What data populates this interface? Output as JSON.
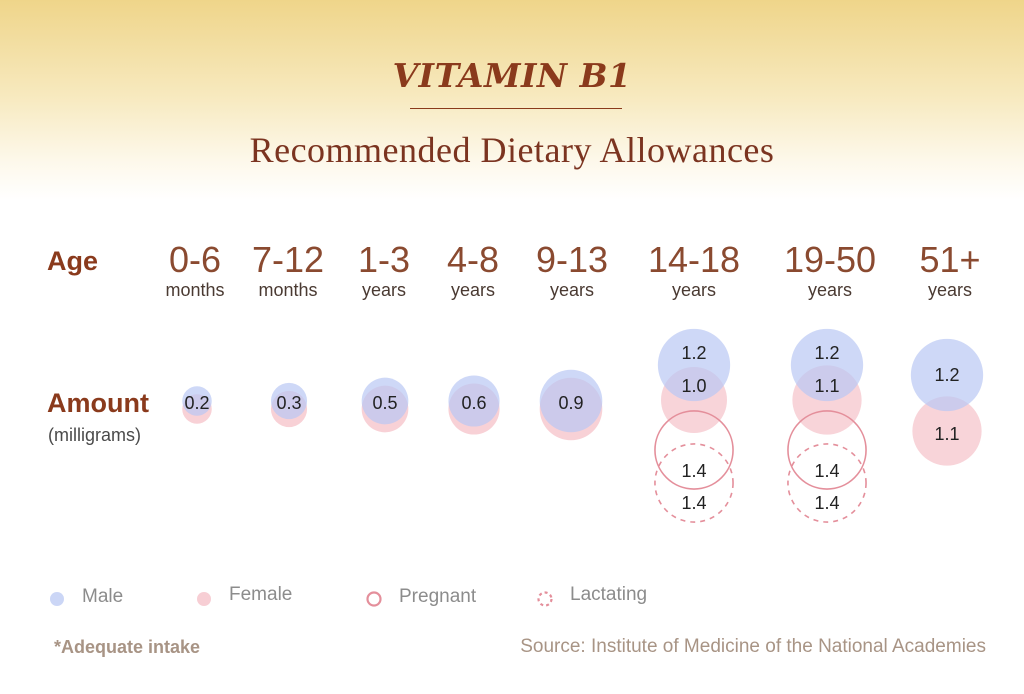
{
  "header": {
    "title": "VITAMIN B1",
    "subtitle": "Recommended Dietary Allowances"
  },
  "labels": {
    "age": "Age",
    "amount": "Amount",
    "amount_unit": "(milligrams)"
  },
  "colors": {
    "male": "#b9c8f3",
    "female": "#f6c5cc",
    "pregnant": "#e48f9b",
    "lactating": "#e48f9b",
    "text_brown": "#8a3a1c"
  },
  "legend": [
    {
      "key": "male",
      "label": "Male"
    },
    {
      "key": "female",
      "label": "Female"
    },
    {
      "key": "pregnant",
      "label": "Pregnant"
    },
    {
      "key": "lactating",
      "label": "Lactating"
    }
  ],
  "footer": {
    "footnote": "*Adequate intake",
    "source": "Source: Institute of Medicine of the National Academies"
  },
  "chart_data": {
    "type": "bubble",
    "title": "VITAMIN B1",
    "subtitle": "Recommended Dietary Allowances",
    "unit": "milligrams",
    "categories": [
      {
        "range": "0-6",
        "unit": "months"
      },
      {
        "range": "7-12",
        "unit": "months"
      },
      {
        "range": "1-3",
        "unit": "years"
      },
      {
        "range": "4-8",
        "unit": "years"
      },
      {
        "range": "9-13",
        "unit": "years"
      },
      {
        "range": "14-18",
        "unit": "years"
      },
      {
        "range": "19-50",
        "unit": "years"
      },
      {
        "range": "51+",
        "unit": "years"
      }
    ],
    "series": [
      {
        "name": "Male",
        "values": [
          0.2,
          0.3,
          0.5,
          0.6,
          0.9,
          1.2,
          1.2,
          1.2
        ]
      },
      {
        "name": "Female",
        "values": [
          0.2,
          0.3,
          0.5,
          0.6,
          0.9,
          1.0,
          1.1,
          1.1
        ]
      },
      {
        "name": "Pregnant",
        "values": [
          null,
          null,
          null,
          null,
          null,
          1.4,
          1.4,
          null
        ]
      },
      {
        "name": "Lactating",
        "values": [
          null,
          null,
          null,
          null,
          null,
          1.4,
          1.4,
          null
        ]
      }
    ],
    "value_labels": [
      [
        "0.2"
      ],
      [
        "0.3"
      ],
      [
        "0.5"
      ],
      [
        "0.6"
      ],
      [
        "0.9"
      ],
      [
        "1.2",
        "1.0",
        "1.4",
        "1.4"
      ],
      [
        "1.2",
        "1.1",
        "1.4",
        "1.4"
      ],
      [
        "1.2",
        "1.1"
      ]
    ],
    "adequate_intake_footnote": "*Adequate intake"
  }
}
